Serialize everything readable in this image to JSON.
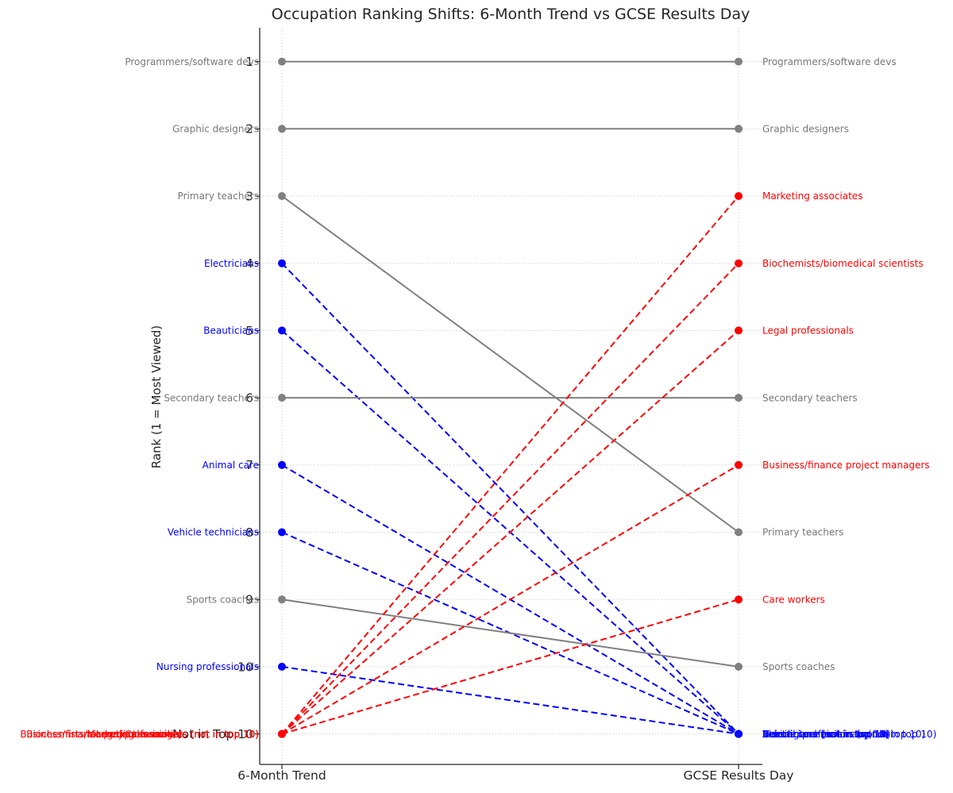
{
  "chart_data": {
    "type": "slope",
    "title": "Occupation Ranking Shifts: 6-Month Trend vs GCSE Results Day",
    "ylabel": "Rank (1 = Most Viewed)",
    "columns": [
      "6-Month Trend",
      "GCSE Results Day"
    ],
    "y_tick_labels": [
      "1",
      "2",
      "3",
      "4",
      "5",
      "6",
      "7",
      "8",
      "9",
      "10",
      "Not in Top 10"
    ],
    "y_axis_range": [
      1,
      11
    ],
    "not_in_top10_rank": 11,
    "not_in_top10_suffix": " (not in top 10)",
    "grid": "dotted",
    "legend": "none",
    "colors": {
      "stable": "#808080",
      "dropped": "#0000ff",
      "new": "#ff0000",
      "axis": "#262626",
      "gridline": "#cfcfcf",
      "gray_label_text": "#777777"
    },
    "line_styles": {
      "stable": "solid",
      "dropped": "dashed",
      "new": "dashed"
    },
    "series": [
      {
        "name": "Programmers/software devs",
        "from": 1,
        "to": 1,
        "status": "stable"
      },
      {
        "name": "Graphic designers",
        "from": 2,
        "to": 2,
        "status": "stable"
      },
      {
        "name": "Primary teachers",
        "from": 3,
        "to": 8,
        "status": "stable"
      },
      {
        "name": "Electricians",
        "from": 4,
        "to": 11,
        "status": "dropped"
      },
      {
        "name": "Beauticians",
        "from": 5,
        "to": 11,
        "status": "dropped"
      },
      {
        "name": "Secondary teachers",
        "from": 6,
        "to": 6,
        "status": "stable"
      },
      {
        "name": "Animal care",
        "from": 7,
        "to": 11,
        "status": "dropped"
      },
      {
        "name": "Vehicle technicians",
        "from": 8,
        "to": 11,
        "status": "dropped"
      },
      {
        "name": "Sports coaches",
        "from": 9,
        "to": 10,
        "status": "stable"
      },
      {
        "name": "Nursing professionals",
        "from": 10,
        "to": 11,
        "status": "dropped"
      },
      {
        "name": "Marketing associates",
        "from": 11,
        "to": 3,
        "status": "new"
      },
      {
        "name": "Biochemists/biomedical scientists",
        "from": 11,
        "to": 4,
        "status": "new"
      },
      {
        "name": "Legal professionals",
        "from": 11,
        "to": 5,
        "status": "new"
      },
      {
        "name": "Business/finance project managers",
        "from": 11,
        "to": 7,
        "status": "new"
      },
      {
        "name": "Care workers",
        "from": 11,
        "to": 9,
        "status": "new"
      }
    ]
  }
}
